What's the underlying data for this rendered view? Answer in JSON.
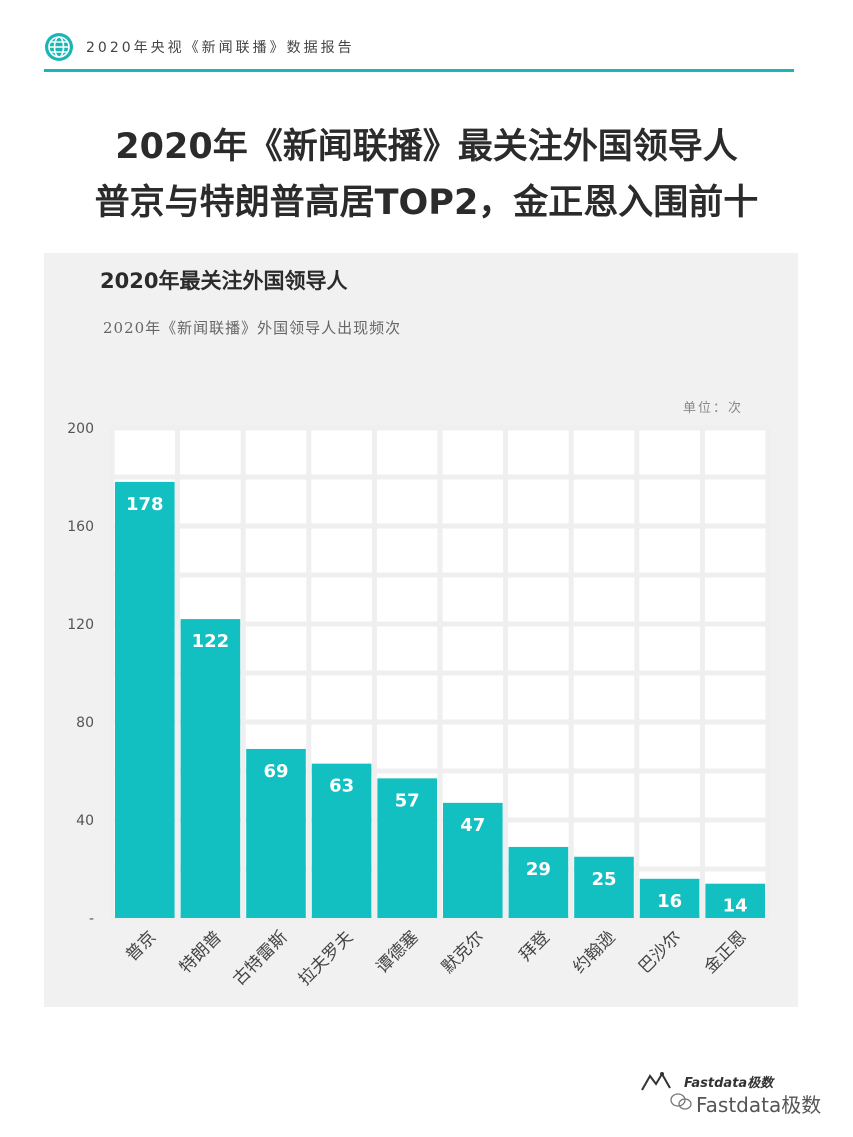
{
  "header": {
    "text": "2020年央视《新闻联播》数据报告",
    "icon": "globe-icon",
    "accent_color": "#1bb5b5"
  },
  "headline": {
    "line1": "2020年《新闻联播》最关注外国领导人",
    "line2": "普京与特朗普高居TOP2，金正恩入围前十"
  },
  "chart_data": {
    "type": "bar",
    "title": "2020年最关注外国领导人",
    "subtitle": "2020年《新闻联播》外国领导人出现频次",
    "unit_label": "单位：次",
    "categories": [
      "普京",
      "特朗普",
      "古特雷斯",
      "拉夫罗夫",
      "谭德塞",
      "默克尔",
      "拜登",
      "约翰逊",
      "巴沙尔",
      "金正恩"
    ],
    "values": [
      178,
      122,
      69,
      63,
      57,
      47,
      29,
      25,
      16,
      14
    ],
    "ylim": [
      0,
      200
    ],
    "yticks": [
      "-",
      "40",
      "80",
      "120",
      "160",
      "200"
    ],
    "bar_color": "#12bfc1",
    "grid": true
  },
  "footer": {
    "logo_text": "Fastdata极数",
    "watermark": "Fastdata极数"
  }
}
